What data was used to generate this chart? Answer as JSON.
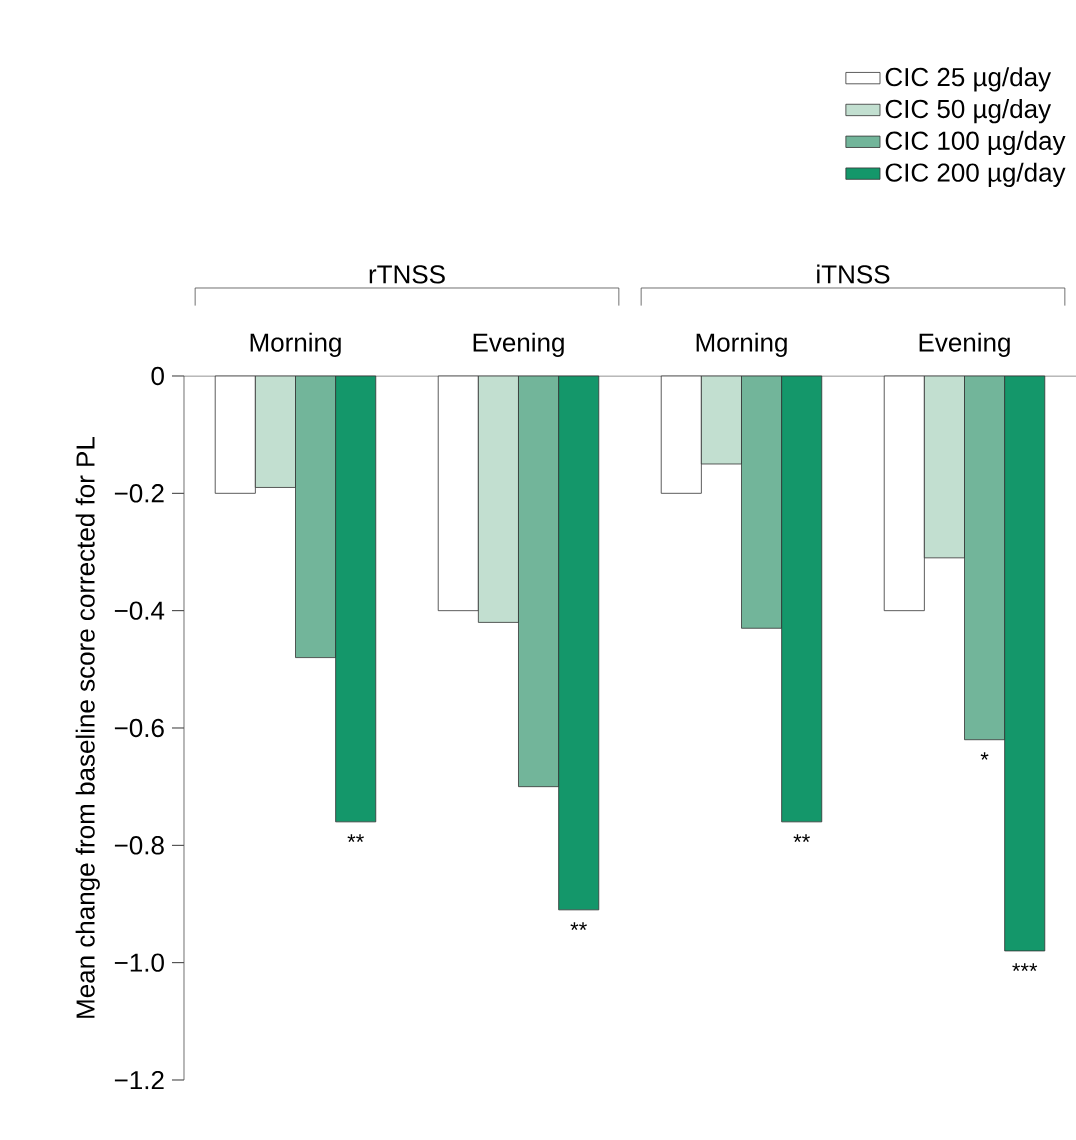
{
  "chart_data": {
    "type": "bar",
    "ylabel": "Mean change from baseline score corrected for PL",
    "categories": [
      "Morning",
      "Evening",
      "Morning",
      "Evening"
    ],
    "annotations": [
      "rTNSS",
      "iTNSS"
    ],
    "series": [
      {
        "name": "CIC 25 µg/day",
        "color": "#ffffff",
        "values": [
          -0.2,
          -0.4,
          -0.2,
          -0.4
        ]
      },
      {
        "name": "CIC 50 µg/day",
        "color": "#c2dfd0",
        "values": [
          -0.19,
          -0.42,
          -0.15,
          -0.31
        ]
      },
      {
        "name": "CIC 100 µg/day",
        "color": "#72b59a",
        "values": [
          -0.48,
          -0.7,
          -0.43,
          -0.62
        ],
        "value_labels": [
          null,
          null,
          null,
          "*"
        ]
      },
      {
        "name": "CIC 200 µg/day",
        "color": "#14976a",
        "values": [
          -0.76,
          -0.91,
          -0.76,
          -0.98
        ],
        "value_labels": [
          "**",
          "**",
          "**",
          "***"
        ]
      }
    ],
    "ylim": [
      -1.2,
      0
    ],
    "yticks": [
      0,
      {
        "value": -0.2,
        "label": "−0.2"
      },
      {
        "value": -0.4,
        "label": "−0.4"
      },
      {
        "value": -0.6,
        "label": "−0.6"
      },
      {
        "value": -0.8,
        "label": "−0.8"
      },
      {
        "value": -1.0,
        "label": "−1.0"
      },
      {
        "value": -1.2,
        "label": "−1.2"
      }
    ],
    "legend": "top right",
    "grid": false
  }
}
